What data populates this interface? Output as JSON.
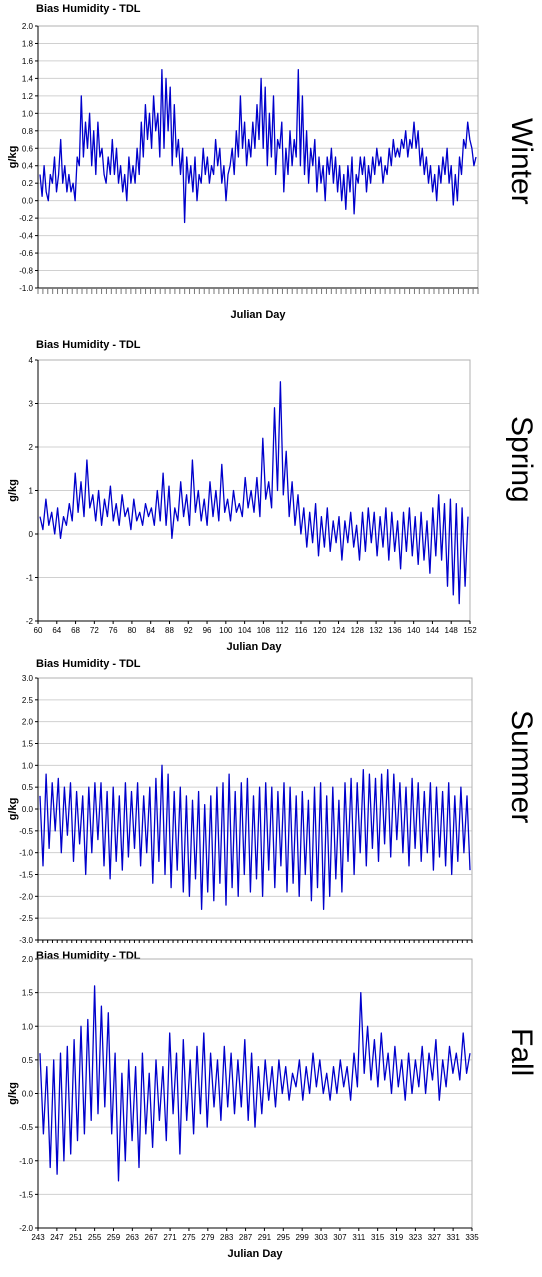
{
  "colors": {
    "series": "#0000cc",
    "grid": "#d0d0d0",
    "axis": "#000000"
  },
  "chart_data": [
    {
      "type": "line",
      "title": "Bias Humidity - TDL",
      "season_label": "Winter",
      "xlabel": "Julian Day",
      "ylabel": "g/kg",
      "ylim": [
        -1.0,
        2.0
      ],
      "yticks": [
        "2.0",
        "1.8",
        "1.6",
        "1.4",
        "1.2",
        "1.0",
        "0.8",
        "0.6",
        "0.4",
        "0.2",
        "0.0",
        "-0.2",
        "-0.4",
        "-0.6",
        "-0.8",
        "-1.0"
      ],
      "grid": true,
      "xtick_style": "dense-rotated",
      "series": [
        {
          "values": [
            0.3,
            0.05,
            0.4,
            0.1,
            0.0,
            0.3,
            0.2,
            0.5,
            0.1,
            0.3,
            0.7,
            0.2,
            0.4,
            0.1,
            0.3,
            0.1,
            0.2,
            0.0,
            0.5,
            0.4,
            1.2,
            0.5,
            0.9,
            0.6,
            1.0,
            0.4,
            0.8,
            0.3,
            0.9,
            0.5,
            0.6,
            0.3,
            0.2,
            0.5,
            0.3,
            0.7,
            0.3,
            0.6,
            0.2,
            0.4,
            0.1,
            0.3,
            0.0,
            0.5,
            0.2,
            0.4,
            0.2,
            0.6,
            0.3,
            0.9,
            0.5,
            1.1,
            0.7,
            1.0,
            0.6,
            1.2,
            0.8,
            1.0,
            0.5,
            1.5,
            0.6,
            1.4,
            0.8,
            1.3,
            0.4,
            1.1,
            0.5,
            0.7,
            0.3,
            0.6,
            -0.25,
            0.5,
            0.2,
            0.4,
            0.1,
            0.5,
            0.0,
            0.3,
            0.2,
            0.6,
            0.3,
            0.5,
            0.2,
            0.4,
            0.3,
            0.7,
            0.4,
            0.6,
            0.2,
            0.4,
            0.0,
            0.3,
            0.4,
            0.6,
            0.3,
            0.8,
            0.5,
            1.2,
            0.6,
            0.9,
            0.4,
            0.7,
            0.5,
            0.9,
            0.6,
            1.1,
            0.7,
            1.4,
            0.6,
            1.3,
            0.4,
            1.0,
            0.5,
            1.2,
            0.3,
            0.7,
            0.6,
            0.9,
            0.1,
            0.6,
            0.3,
            0.8,
            0.4,
            0.7,
            0.5,
            1.5,
            0.4,
            1.2,
            0.3,
            0.8,
            0.2,
            0.6,
            0.4,
            0.7,
            0.1,
            0.5,
            0.2,
            0.4,
            0.0,
            0.5,
            0.3,
            0.6,
            0.2,
            0.5,
            0.1,
            0.4,
            0.0,
            0.3,
            -0.1,
            0.4,
            0.1,
            0.5,
            -0.15,
            0.3,
            0.2,
            0.5,
            0.3,
            0.5,
            0.1,
            0.4,
            0.2,
            0.5,
            0.3,
            0.6,
            0.4,
            0.5,
            0.2,
            0.4,
            0.3,
            0.6,
            0.4,
            0.7,
            0.5,
            0.6,
            0.5,
            0.7,
            0.6,
            0.8,
            0.5,
            0.7,
            0.6,
            0.9,
            0.6,
            0.8,
            0.4,
            0.6,
            0.3,
            0.5,
            0.2,
            0.4,
            0.1,
            0.3,
            0.0,
            0.4,
            0.2,
            0.5,
            0.3,
            0.6,
            0.2,
            0.4,
            -0.05,
            0.3,
            0.0,
            0.5,
            0.3,
            0.7,
            0.6,
            0.9,
            0.7,
            0.6,
            0.4,
            0.5
          ]
        }
      ]
    },
    {
      "type": "line",
      "title": "Bias Humidity - TDL",
      "season_label": "Spring",
      "xlabel": "Julian Day",
      "ylabel": "g/kg",
      "ylim": [
        -2,
        4
      ],
      "yticks": [
        "4",
        "3",
        "2",
        "1",
        "0",
        "-1",
        "-2"
      ],
      "grid": true,
      "x_range": [
        60,
        152
      ],
      "xticks": [
        "60",
        "64",
        "68",
        "72",
        "76",
        "80",
        "84",
        "88",
        "92",
        "96",
        "100",
        "104",
        "108",
        "112",
        "116",
        "120",
        "124",
        "128",
        "132",
        "136",
        "140",
        "144",
        "148",
        "152"
      ],
      "series": [
        {
          "values": [
            0.4,
            0.1,
            0.8,
            0.2,
            0.5,
            0.0,
            0.6,
            -0.1,
            0.4,
            0.2,
            0.7,
            0.3,
            1.4,
            0.5,
            1.2,
            0.4,
            1.7,
            0.6,
            0.9,
            0.3,
            1.0,
            0.2,
            0.8,
            0.4,
            1.1,
            0.3,
            0.7,
            0.2,
            0.9,
            0.4,
            0.6,
            0.1,
            0.8,
            0.3,
            0.5,
            0.2,
            0.7,
            0.4,
            0.6,
            0.2,
            1.0,
            0.3,
            1.4,
            0.2,
            1.1,
            -0.1,
            0.6,
            0.3,
            1.2,
            0.4,
            0.9,
            0.2,
            1.7,
            0.5,
            1.0,
            0.3,
            0.8,
            0.2,
            1.2,
            0.4,
            1.0,
            0.3,
            1.6,
            0.5,
            0.8,
            0.3,
            1.0,
            0.5,
            0.7,
            0.4,
            1.3,
            0.6,
            1.0,
            0.5,
            1.3,
            0.4,
            2.2,
            0.8,
            1.2,
            0.6,
            2.9,
            1.0,
            3.5,
            0.9,
            1.9,
            0.4,
            1.2,
            0.2,
            0.9,
            0.0,
            0.6,
            -0.3,
            0.5,
            -0.2,
            0.7,
            -0.5,
            0.4,
            -0.3,
            0.6,
            -0.4,
            0.3,
            -0.2,
            0.4,
            -0.6,
            0.3,
            -0.2,
            0.5,
            -0.3,
            0.2,
            -0.6,
            0.5,
            -0.4,
            0.6,
            -0.2,
            0.5,
            -0.5,
            0.4,
            -0.3,
            0.6,
            -0.6,
            0.5,
            -0.4,
            0.3,
            -0.8,
            0.5,
            -0.4,
            0.6,
            -0.5,
            0.4,
            -0.7,
            0.5,
            -0.6,
            0.3,
            -0.9,
            0.6,
            -0.5,
            0.9,
            -0.6,
            0.7,
            -1.2,
            0.8,
            -1.4,
            0.7,
            -1.6,
            0.6,
            -1.2,
            0.4
          ]
        }
      ]
    },
    {
      "type": "line",
      "title": "Bias Humidity - TDL",
      "season_label": "Summer",
      "xlabel": "",
      "ylabel": "g/kg",
      "ylim": [
        -3.0,
        3.0
      ],
      "yticks": [
        "3.0",
        "2.5",
        "2.0",
        "1.5",
        "1.0",
        "0.5",
        "0.0",
        "-0.5",
        "-1.0",
        "-1.5",
        "-2.0",
        "-2.5",
        "-3.0"
      ],
      "grid": true,
      "xtick_style": "ticks-only",
      "series": [
        {
          "values": [
            0.3,
            -1.3,
            0.8,
            -0.9,
            0.6,
            -0.5,
            0.7,
            -1.0,
            0.5,
            -0.6,
            0.6,
            -1.2,
            0.4,
            -0.8,
            0.3,
            -1.5,
            0.5,
            -1.0,
            0.6,
            -0.7,
            0.6,
            -1.3,
            0.4,
            -1.6,
            0.5,
            -1.2,
            0.3,
            -1.4,
            0.6,
            -1.1,
            0.4,
            -0.9,
            0.6,
            -1.3,
            0.3,
            -1.0,
            0.5,
            -1.7,
            0.7,
            -1.2,
            1.0,
            -1.5,
            0.8,
            -1.8,
            0.4,
            -1.4,
            0.5,
            -1.9,
            0.3,
            -2.0,
            0.2,
            -1.6,
            0.4,
            -2.3,
            0.1,
            -1.9,
            0.3,
            -2.1,
            0.5,
            -1.7,
            0.6,
            -2.2,
            0.8,
            -1.8,
            0.4,
            -2.0,
            0.6,
            -1.5,
            0.7,
            -1.9,
            0.3,
            -1.6,
            0.5,
            -2.0,
            0.6,
            -1.4,
            0.5,
            -1.8,
            0.4,
            -1.3,
            0.6,
            -1.9,
            0.5,
            -1.7,
            0.3,
            -2.0,
            0.4,
            -1.5,
            0.2,
            -2.1,
            0.5,
            -1.8,
            0.6,
            -2.3,
            0.3,
            -2.0,
            0.5,
            -1.6,
            0.2,
            -1.9,
            0.6,
            -1.2,
            0.7,
            -1.5,
            0.6,
            -1.0,
            0.9,
            -1.3,
            0.8,
            -0.9,
            0.7,
            -1.2,
            0.8,
            -0.8,
            0.9,
            -1.1,
            0.8,
            -0.7,
            0.6,
            -1.0,
            0.5,
            -1.3,
            0.7,
            -0.9,
            0.6,
            -1.2,
            0.4,
            -1.0,
            0.6,
            -1.4,
            0.5,
            -1.1,
            0.4,
            -1.3,
            0.6,
            -1.5,
            0.3,
            -1.2,
            0.5,
            -1.0,
            0.3,
            -1.4
          ]
        }
      ]
    },
    {
      "type": "line",
      "title": "Bias Humidity - TDL",
      "season_label": "Fall",
      "xlabel": "Julian Day",
      "ylabel": "g/kg",
      "ylim": [
        -2.0,
        2.0
      ],
      "yticks": [
        "2.0",
        "1.5",
        "1.0",
        "0.5",
        "0.0",
        "-0.5",
        "-1.0",
        "-1.5",
        "-2.0"
      ],
      "grid": true,
      "x_range": [
        243,
        335
      ],
      "xticks": [
        "243",
        "247",
        "251",
        "255",
        "259",
        "263",
        "267",
        "271",
        "275",
        "279",
        "283",
        "287",
        "291",
        "295",
        "299",
        "303",
        "307",
        "311",
        "315",
        "319",
        "323",
        "327",
        "331",
        "335"
      ],
      "series": [
        {
          "values": [
            0.6,
            -0.6,
            0.4,
            -1.1,
            0.5,
            -1.2,
            0.6,
            -1.0,
            0.7,
            -0.9,
            0.8,
            -0.7,
            1.0,
            -0.6,
            1.1,
            -0.4,
            1.6,
            -0.3,
            1.3,
            -0.2,
            1.2,
            -0.6,
            0.6,
            -1.3,
            0.3,
            -1.0,
            0.5,
            -0.7,
            0.4,
            -1.1,
            0.6,
            -0.6,
            0.3,
            -0.8,
            0.5,
            -0.4,
            0.4,
            -0.7,
            0.9,
            -0.3,
            0.6,
            -0.9,
            0.8,
            -0.4,
            0.5,
            -0.6,
            0.7,
            -0.3,
            0.9,
            -0.5,
            0.6,
            -0.2,
            0.5,
            -0.4,
            0.7,
            -0.2,
            0.6,
            -0.3,
            0.5,
            -0.2,
            0.8,
            -0.4,
            0.6,
            -0.5,
            0.4,
            -0.3,
            0.5,
            -0.1,
            0.4,
            -0.2,
            0.5,
            0.0,
            0.4,
            -0.1,
            0.3,
            0.1,
            0.5,
            -0.1,
            0.4,
            0.0,
            0.6,
            0.1,
            0.5,
            0.0,
            0.3,
            -0.1,
            0.4,
            0.0,
            0.5,
            0.1,
            0.4,
            -0.1,
            0.6,
            0.1,
            1.5,
            0.3,
            1.0,
            0.2,
            0.8,
            0.1,
            0.9,
            0.2,
            0.6,
            0.0,
            0.7,
            0.1,
            0.5,
            -0.1,
            0.6,
            0.0,
            0.5,
            0.1,
            0.7,
            0.0,
            0.6,
            0.2,
            0.8,
            -0.1,
            0.5,
            0.1,
            0.7,
            0.3,
            0.6,
            0.2,
            0.9,
            0.3,
            0.6
          ]
        }
      ]
    }
  ]
}
